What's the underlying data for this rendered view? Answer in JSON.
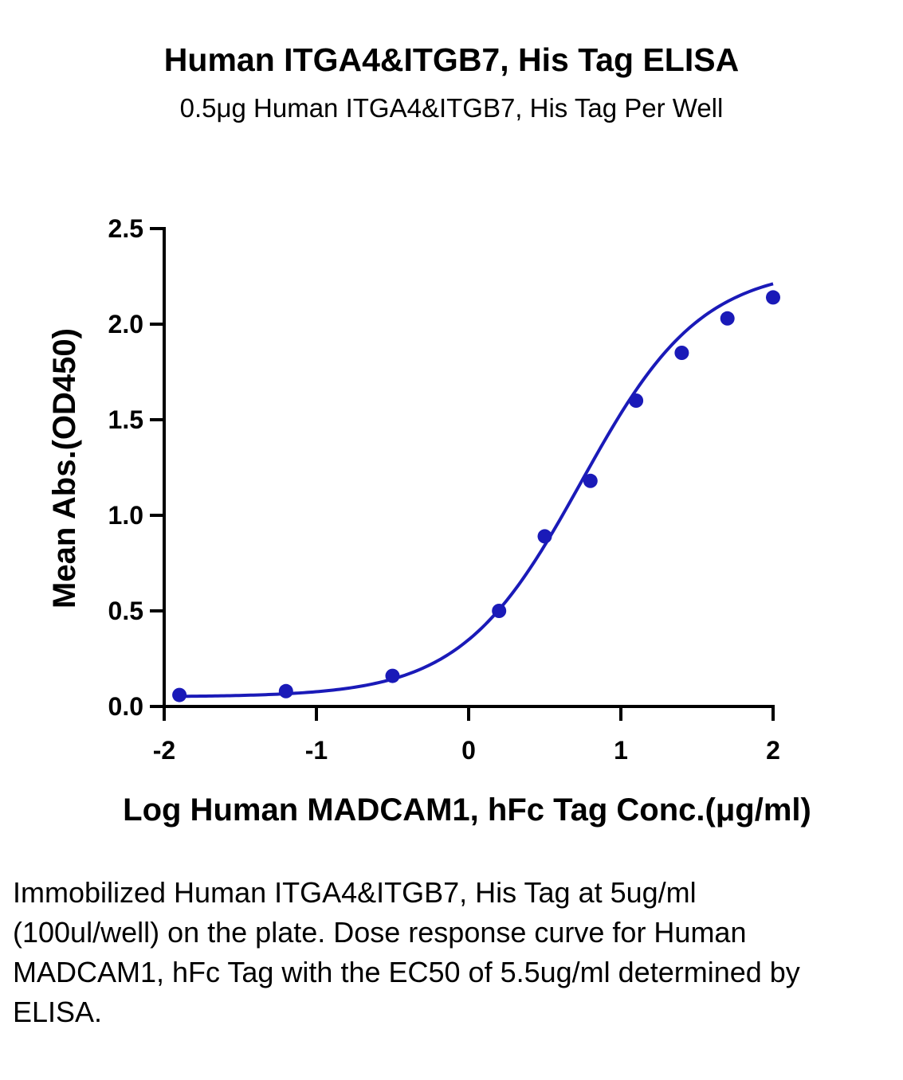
{
  "chart_data": {
    "type": "line",
    "title": "Human ITGA4&ITGB7, His Tag ELISA",
    "subtitle": "0.5μg Human ITGA4&ITGB7, His Tag Per Well",
    "xlabel": "Log Human MADCAM1, hFc Tag Conc.(μg/ml)",
    "ylabel": "Mean Abs.(OD450)",
    "xlim": [
      -2,
      2
    ],
    "ylim": [
      0,
      2.5
    ],
    "x_ticks": [
      -2,
      -1,
      0,
      1,
      2
    ],
    "x_tick_labels": [
      "-2",
      "-1",
      "0",
      "1",
      "2"
    ],
    "y_ticks": [
      0,
      0.5,
      1,
      1.5,
      2,
      2.5
    ],
    "y_tick_labels": [
      "0.0",
      "0.5",
      "1.0",
      "1.5",
      "2.0",
      "2.5"
    ],
    "grid": false,
    "series": [
      {
        "x": [
          -1.9,
          -1.2,
          -0.5,
          0.2,
          0.5,
          0.8,
          1.1,
          1.4,
          1.7,
          2.0
        ],
        "y": [
          0.06,
          0.08,
          0.16,
          0.5,
          0.89,
          1.18,
          1.6,
          1.85,
          2.03,
          2.14
        ],
        "color": "#1a1ab8",
        "fit": "four-parameter logistic"
      }
    ]
  },
  "caption": "Immobilized Human ITGA4&ITGB7, His Tag at 5ug/ml (100ul/well) on the plate. Dose response curve for Human MADCAM1, hFc Tag with the EC50 of 5.5ug/ml determined by ELISA."
}
